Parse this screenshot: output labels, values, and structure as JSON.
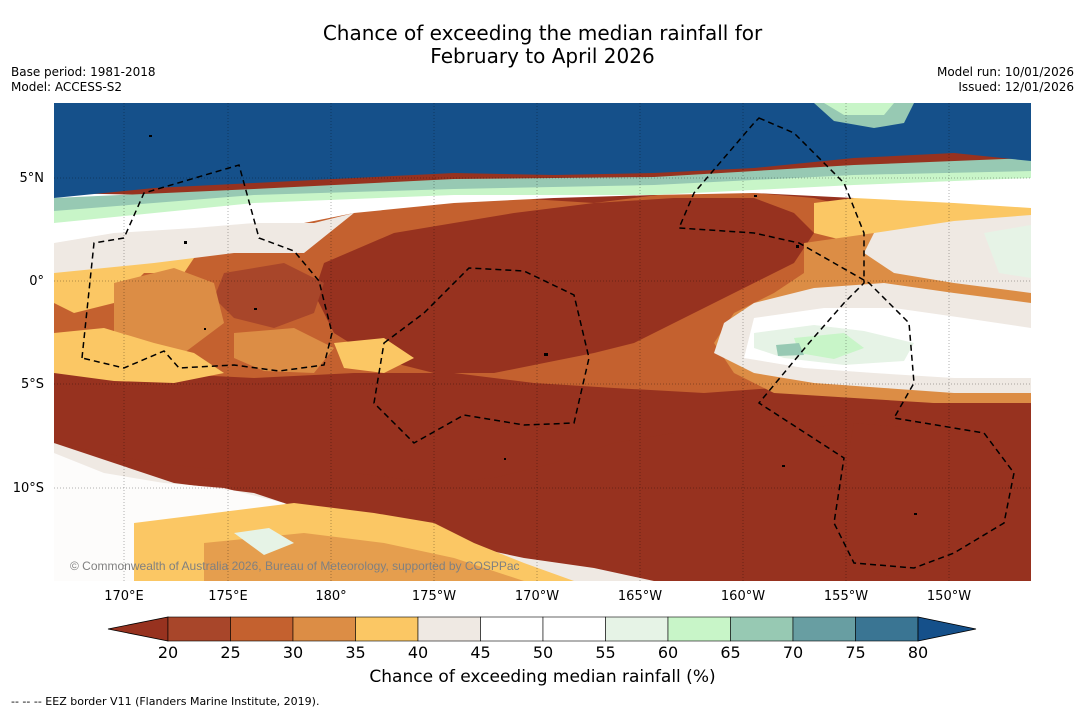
{
  "title": {
    "line1": "Chance of exceeding the median rainfall for",
    "line2": "February to April 2026"
  },
  "meta_left": {
    "base_period": "Base period: 1981-2018",
    "model": "Model: ACCESS-S2"
  },
  "meta_right": {
    "model_run": "Model run: 10/01/2026",
    "issued": "Issued: 12/01/2026"
  },
  "lat_labels": [
    "5°N",
    "0°",
    "5°S",
    "10°S"
  ],
  "lon_labels": [
    "170°E",
    "175°E",
    "180°",
    "175°W",
    "170°W",
    "165°W",
    "160°W",
    "155°W",
    "150°W"
  ],
  "copyright": "© Commonwealth of Australia 2026, Bureau of Meteorology, supported by COSPPac",
  "colorbar": {
    "ticks": [
      "20",
      "25",
      "30",
      "35",
      "40",
      "45",
      "50",
      "55",
      "60",
      "65",
      "70",
      "75",
      "80"
    ],
    "colors": [
      "#a8462a",
      "#c4612f",
      "#dc8d45",
      "#fbc764",
      "#efe9e3",
      "#ffffff",
      "#ffffff",
      "#e6f3e6",
      "#c8f5c8",
      "#97c9b3",
      "#689ea2",
      "#3a7593"
    ],
    "under_color": "#97321f",
    "over_color": "#15508a",
    "label": "Chance of exceeding median rainfall (%)"
  },
  "footnote": "-- -- -- EEZ border V11 (Flanders Marine Institute, 2019)."
}
